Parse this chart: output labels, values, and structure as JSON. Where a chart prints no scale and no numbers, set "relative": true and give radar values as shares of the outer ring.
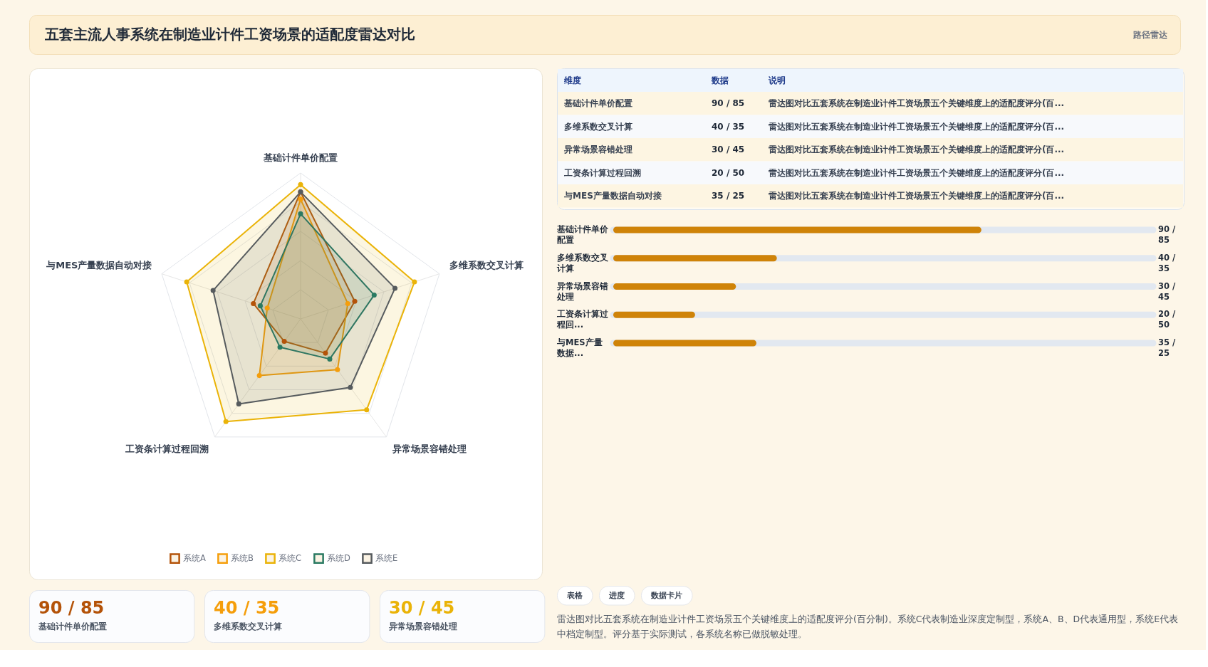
{
  "chart_data": [
    {
      "type": "radar",
      "title": "五套主流人事系统在制造业计件工资场景的适配度雷达对比",
      "annotations": [
        "路径雷达",
        "雷达图对比五套系统在制造业计件工资场景五个关键维度上的适配度评分(百分制)。系统C代表制造业深度定制型，系统A、B、D代表通用型，系统E代表中档定制型。评分基于实际测试，各系统名称已做脱敏处理。"
      ],
      "categories": [
        "基础计件单价配置",
        "多维系数交叉计算",
        "异常场景容错处理",
        "工资条计算过程回溯",
        "与MES产量数据自动对接"
      ],
      "relative": true,
      "grid": true,
      "legend": "bottom",
      "marker": "circle",
      "series": [
        {
          "name": "系统A",
          "color": "#b45309",
          "values": [
            0.87,
            0.39,
            0.29,
            0.19,
            0.34
          ]
        },
        {
          "name": "系统B",
          "color": "#f59e0b",
          "values": [
            0.82,
            0.34,
            0.43,
            0.48,
            0.24
          ]
        },
        {
          "name": "系统C",
          "color": "#eab308",
          "values": [
            0.92,
            0.82,
            0.77,
            0.87,
            0.82
          ]
        },
        {
          "name": "系统D",
          "color": "#2a7a62",
          "values": [
            0.72,
            0.53,
            0.34,
            0.24,
            0.29
          ]
        },
        {
          "name": "系统E",
          "color": "#565b5e",
          "values": [
            0.87,
            0.68,
            0.58,
            0.72,
            0.63
          ]
        }
      ]
    },
    {
      "type": "other",
      "annotations": [
        "维度",
        "数据",
        "说明",
        "基础计件单价配置",
        "90 / 85",
        "雷达图对比五套系统在制造业计件工资场景五个关键维度上的适配度评分(百...",
        "多维系数交叉计算",
        "40 / 35",
        "雷达图对比五套系统在制造业计件工资场景五个关键维度上的适配度评分(百...",
        "异常场景容错处理",
        "30 / 45",
        "雷达图对比五套系统在制造业计件工资场景五个关键维度上的适配度评分(百...",
        "工资条计算过程回溯",
        "20 / 50",
        "雷达图对比五套系统在制造业计件工资场景五个关键维度上的适配度评分(百...",
        "与MES产量数据自动对接",
        "35 / 25",
        "雷达图对比五套系统在制造业计件工资场景五个关键维度上的适配度评分(百..."
      ]
    },
    {
      "type": "bar",
      "orientation": "horizontal",
      "categories": [
        "基础计件单价配置",
        "多维系数交叉计算",
        "异常场景容错处理",
        "工资条计算过程回...",
        "与MES产量数据..."
      ],
      "values": [
        90,
        40,
        30,
        20,
        35
      ],
      "value_labels": [
        "90 / 85",
        "40 / 35",
        "30 / 45",
        "20 / 50",
        "35 / 25"
      ],
      "color": "#cf8308",
      "xlim": [
        0,
        132
      ],
      "tick_labels": "y"
    },
    {
      "type": "other",
      "annotations": [
        "90 / 85",
        "基础计件单价配置",
        "40 / 35",
        "多维系数交叉计算",
        "30 / 45",
        "异常场景容错处理"
      ],
      "colors": [
        "#b45309",
        "#f59e0b",
        "#eab308"
      ]
    },
    {
      "type": "other",
      "annotations": [
        "表格",
        "进度",
        "数据卡片"
      ]
    }
  ]
}
